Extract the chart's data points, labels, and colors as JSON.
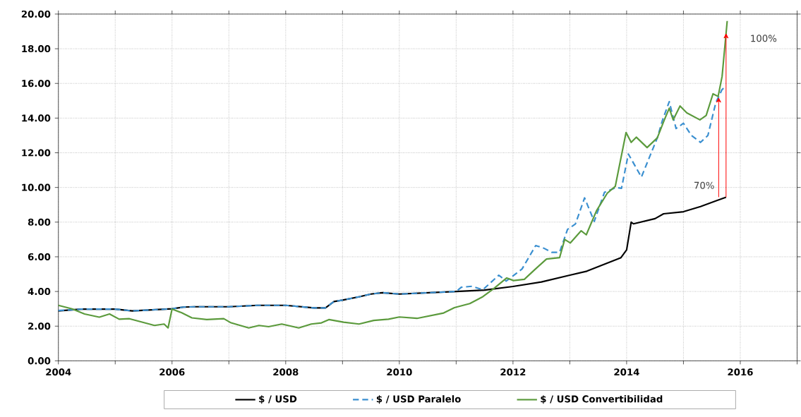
{
  "chart_data": {
    "type": "line",
    "xlim": [
      2004,
      2017
    ],
    "xticks": [
      2004,
      {
        "value": 2005,
        "label": null
      },
      2006,
      {
        "value": 2007,
        "label": null
      },
      2008,
      {
        "value": 2009,
        "label": null
      },
      2010,
      {
        "value": 2011,
        "label": null
      },
      2012,
      {
        "value": 2013,
        "label": null
      },
      2014,
      {
        "value": 2015,
        "label": null
      },
      2016,
      {
        "value": 2017,
        "label": null
      }
    ],
    "ylim": [
      0,
      20
    ],
    "yticks": [
      {
        "value": 0,
        "label": "0.00"
      },
      {
        "value": 2,
        "label": "2.00"
      },
      {
        "value": 4,
        "label": "4.00"
      },
      {
        "value": 6,
        "label": "6.00"
      },
      {
        "value": 8,
        "label": "8.00"
      },
      {
        "value": 10,
        "label": "10.00"
      },
      {
        "value": 12,
        "label": "12.00"
      },
      {
        "value": 14,
        "label": "14.00"
      },
      {
        "value": 16,
        "label": "16.00"
      },
      {
        "value": 18,
        "label": "18.00"
      },
      {
        "value": 20,
        "label": "20.00"
      }
    ],
    "grid": true,
    "legend": "bottom",
    "marker": "none",
    "annotations": [
      {
        "text": "70%",
        "x": 2015.62,
        "y": 15.2
      },
      {
        "text": "100%",
        "x": 2015.75,
        "y": 18.9
      }
    ],
    "series": [
      {
        "name": "$ / USD",
        "color": "#000000",
        "line_style": "solid",
        "x": [
          2004.0,
          2004.4,
          2005.0,
          2005.3,
          2006.0,
          2006.2,
          2006.4,
          2007.0,
          2007.5,
          2008.0,
          2008.5,
          2008.7,
          2008.85,
          2009.0,
          2009.3,
          2009.5,
          2009.7,
          2010.0,
          2011.0,
          2011.5,
          2012.0,
          2012.5,
          2013.0,
          2013.3,
          2013.6,
          2013.9,
          2014.0,
          2014.05,
          2014.08,
          2014.12,
          2014.5,
          2014.65,
          2015.0,
          2015.3,
          2015.75
        ],
        "values": [
          2.88,
          2.98,
          2.98,
          2.88,
          3.0,
          3.1,
          3.12,
          3.12,
          3.2,
          3.2,
          3.05,
          3.05,
          3.42,
          3.5,
          3.7,
          3.85,
          3.93,
          3.85,
          4.0,
          4.08,
          4.29,
          4.55,
          4.94,
          5.17,
          5.56,
          5.95,
          6.4,
          7.4,
          8.0,
          7.9,
          8.2,
          8.48,
          8.6,
          8.9,
          9.44
        ]
      },
      {
        "name": "$ / USD Paralelo",
        "color": "#3a8fd0",
        "line_style": "dashed",
        "x": [
          2004.0,
          2004.4,
          2005.0,
          2005.3,
          2006.0,
          2006.2,
          2006.4,
          2007.0,
          2007.5,
          2008.0,
          2008.5,
          2008.7,
          2008.85,
          2009.0,
          2009.3,
          2009.5,
          2009.7,
          2010.0,
          2011.0,
          2011.09,
          2011.28,
          2011.47,
          2011.75,
          2011.88,
          2012.16,
          2012.4,
          2012.54,
          2012.68,
          2012.82,
          2012.96,
          2013.1,
          2013.26,
          2013.43,
          2013.61,
          2013.82,
          2013.91,
          2014.03,
          2014.26,
          2014.54,
          2014.63,
          2014.75,
          2014.87,
          2015.0,
          2015.14,
          2015.3,
          2015.43,
          2015.57,
          2015.68,
          2015.74
        ],
        "values": [
          2.9,
          2.98,
          2.98,
          2.88,
          3.0,
          3.1,
          3.12,
          3.12,
          3.2,
          3.2,
          3.05,
          3.05,
          3.42,
          3.5,
          3.7,
          3.85,
          3.93,
          3.85,
          4.0,
          4.24,
          4.3,
          4.1,
          4.94,
          4.6,
          5.3,
          6.65,
          6.5,
          6.26,
          6.26,
          7.58,
          7.9,
          9.4,
          8.04,
          9.72,
          10.0,
          9.95,
          11.93,
          10.6,
          12.86,
          13.87,
          14.95,
          13.4,
          13.7,
          13.0,
          12.6,
          13.0,
          14.9,
          15.65,
          15.8
        ]
      },
      {
        "name": "$ / USD Convertibilidad",
        "color": "#5b9a3c",
        "line_style": "solid",
        "x": [
          2004.0,
          2004.24,
          2004.46,
          2004.72,
          2004.9,
          2005.07,
          2005.25,
          2005.6,
          2005.69,
          2005.86,
          2005.93,
          2006.0,
          2006.17,
          2006.35,
          2006.61,
          2006.91,
          2007.04,
          2007.35,
          2007.53,
          2007.7,
          2007.93,
          2008.23,
          2008.45,
          2008.63,
          2008.76,
          2009.02,
          2009.29,
          2009.55,
          2009.81,
          2010.0,
          2010.31,
          2010.78,
          2010.97,
          2011.24,
          2011.47,
          2011.66,
          2011.89,
          2012.01,
          2012.2,
          2012.38,
          2012.59,
          2012.82,
          2012.91,
          2013.01,
          2013.2,
          2013.29,
          2013.47,
          2013.66,
          2013.8,
          2013.99,
          2014.08,
          2014.17,
          2014.36,
          2014.54,
          2014.66,
          2014.75,
          2014.82,
          2014.94,
          2015.06,
          2015.29,
          2015.4,
          2015.52,
          2015.61,
          2015.68,
          2015.77
        ],
        "values": [
          3.2,
          3.0,
          2.7,
          2.52,
          2.7,
          2.4,
          2.43,
          2.12,
          2.04,
          2.12,
          1.9,
          2.99,
          2.77,
          2.48,
          2.38,
          2.43,
          2.19,
          1.9,
          2.04,
          1.97,
          2.12,
          1.9,
          2.12,
          2.19,
          2.38,
          2.23,
          2.12,
          2.33,
          2.4,
          2.53,
          2.45,
          2.76,
          3.07,
          3.3,
          3.7,
          4.16,
          4.78,
          4.63,
          4.7,
          5.25,
          5.87,
          5.95,
          7.0,
          6.8,
          7.5,
          7.27,
          8.66,
          9.67,
          10.06,
          13.17,
          12.6,
          12.9,
          12.3,
          12.86,
          13.87,
          14.57,
          13.9,
          14.7,
          14.3,
          13.9,
          14.15,
          15.4,
          15.25,
          16.4,
          19.6
        ]
      }
    ]
  }
}
